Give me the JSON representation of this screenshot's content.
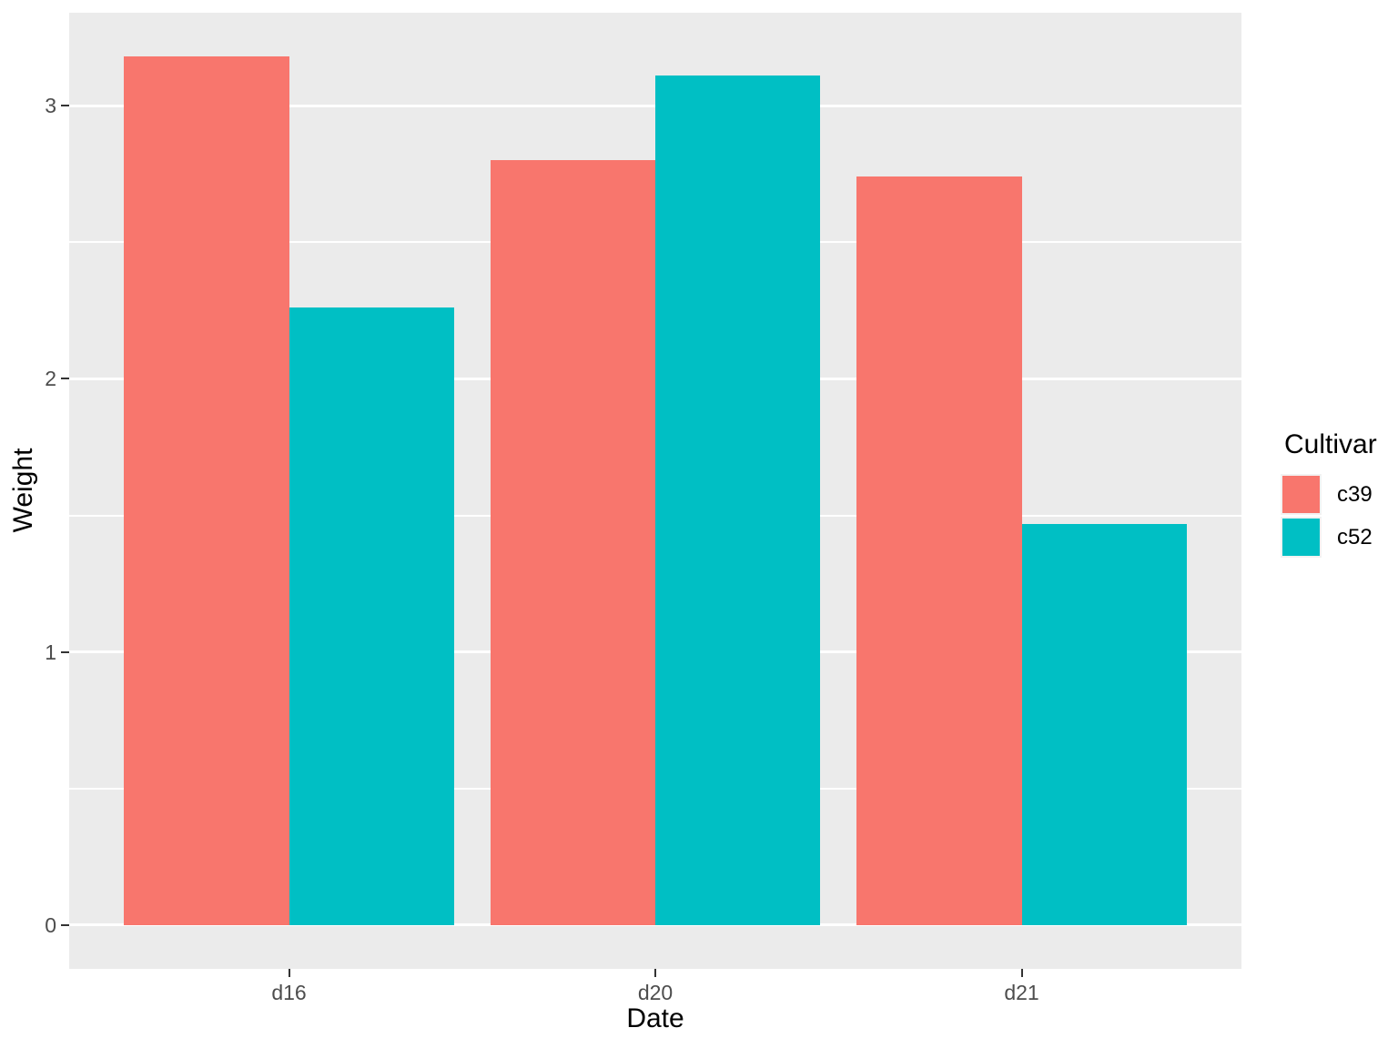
{
  "chart_data": {
    "type": "bar",
    "title": "",
    "xlabel": "Date",
    "ylabel": "Weight",
    "categories": [
      "d16",
      "d20",
      "d21"
    ],
    "series": [
      {
        "name": "c39",
        "color": "#F8766D",
        "values": [
          3.18,
          2.8,
          2.74
        ]
      },
      {
        "name": "c52",
        "color": "#00BFC4",
        "values": [
          2.26,
          3.11,
          1.47
        ]
      }
    ],
    "y_ticks": [
      0,
      1,
      2,
      3
    ],
    "y_minor_ticks": [
      0.5,
      1.5,
      2.5
    ],
    "ylim": [
      -0.16,
      3.34
    ],
    "x_domain": [
      0.4,
      3.6
    ],
    "bar_width_units": 0.45,
    "grid": true,
    "legend": {
      "title": "Cultivar",
      "position": "right"
    },
    "colors": {
      "panel_bg": "#EBEBEB",
      "grid": "#FFFFFF",
      "tick_mark": "#333333",
      "tick_label": "#4D4D4D",
      "axis_title": "#000000",
      "legend_key_bg": "#F2F2F2"
    }
  }
}
